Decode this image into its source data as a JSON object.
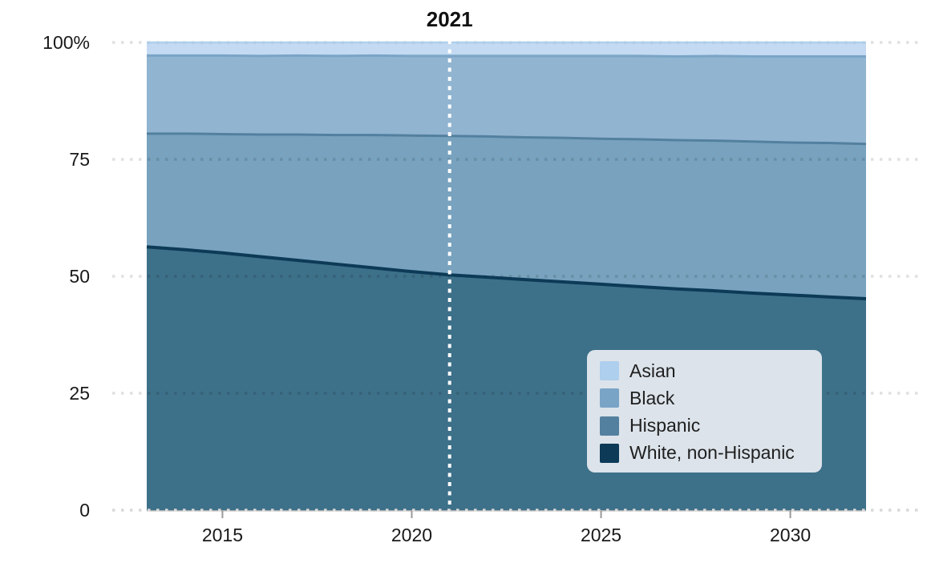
{
  "chart_data": {
    "type": "area",
    "stacked": true,
    "unit": "%",
    "title": "",
    "marker": {
      "x": 2021,
      "label": "2021"
    },
    "xlim": [
      2013,
      2032
    ],
    "ylim": [
      0,
      100
    ],
    "grid": "dotted-horizontal",
    "x": [
      2013,
      2014,
      2015,
      2016,
      2017,
      2018,
      2019,
      2020,
      2021,
      2022,
      2023,
      2024,
      2025,
      2026,
      2027,
      2028,
      2029,
      2030,
      2031,
      2032
    ],
    "series": [
      {
        "name": "White, non-Hispanic",
        "color": "#0c3a57",
        "fill": "#3d7089",
        "values": [
          56.3,
          55.7,
          55.0,
          54.2,
          53.4,
          52.6,
          51.8,
          51.0,
          50.3,
          49.8,
          49.3,
          48.8,
          48.3,
          47.8,
          47.3,
          46.9,
          46.4,
          46.0,
          45.6,
          45.2
        ]
      },
      {
        "name": "Hispanic",
        "color": "#53809f",
        "fill": "#78a2be",
        "values": [
          24.2,
          24.8,
          25.4,
          26.1,
          26.9,
          27.6,
          28.4,
          29.1,
          29.7,
          30.1,
          30.4,
          30.8,
          31.1,
          31.5,
          31.8,
          32.1,
          32.4,
          32.6,
          32.9,
          33.1
        ]
      },
      {
        "name": "Black",
        "color": "#7aa4c6",
        "fill": "#91b4d0",
        "values": [
          16.7,
          16.7,
          16.8,
          16.8,
          16.9,
          16.9,
          17.0,
          17.0,
          17.1,
          17.2,
          17.4,
          17.5,
          17.7,
          17.8,
          17.9,
          18.1,
          18.2,
          18.4,
          18.5,
          18.7
        ]
      },
      {
        "name": "Asian",
        "color": "#aecfed",
        "fill": "#c3daf2",
        "values": [
          2.8,
          2.8,
          2.8,
          2.9,
          2.9,
          2.9,
          2.9,
          3.0,
          3.0,
          3.0,
          3.0,
          3.0,
          3.0,
          3.0,
          3.0,
          3.0,
          3.0,
          3.0,
          3.0,
          3.0
        ]
      }
    ],
    "xticks": {
      "values": [
        2015,
        2020,
        2025,
        2030
      ],
      "labels": [
        "2015",
        "2020",
        "2025",
        "2030"
      ]
    },
    "yticks": {
      "values": [
        0,
        25,
        50,
        75,
        100
      ],
      "labels": [
        "0",
        "25",
        "50",
        "75",
        "100%"
      ]
    },
    "legend": {
      "position": "inside-bottom-right",
      "background": "#dce3ea",
      "items": [
        {
          "label": "Asian",
          "color": "#aecfed"
        },
        {
          "label": "Black",
          "color": "#7aa4c6"
        },
        {
          "label": "Hispanic",
          "color": "#53809f"
        },
        {
          "label": "White, non-Hispanic",
          "color": "#0c3a57"
        }
      ]
    },
    "colors": {
      "axis_line": "#b0b0b0",
      "tick": "#999999",
      "label_text": "#191919",
      "marker_line": "#ffffff"
    }
  }
}
